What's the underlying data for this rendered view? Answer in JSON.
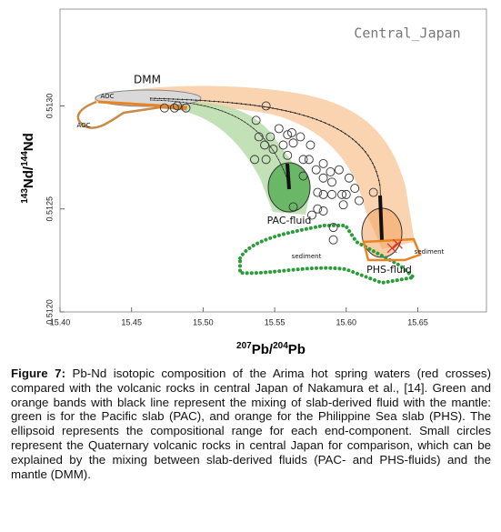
{
  "chart_data": {
    "type": "scatter",
    "xlabel_parts": [
      "207",
      "Pb/",
      "204",
      "Pb"
    ],
    "ylabel_parts": [
      "143",
      "Nd/",
      "144",
      "Nd"
    ],
    "annotations": [
      "Central_Japan",
      "DMM",
      "AOC",
      "AOC",
      "PAC-fluid",
      "PHS-fluid",
      "sediment",
      "sediment"
    ],
    "xlim": [
      15.4,
      15.698
    ],
    "ylim": [
      0.512,
      0.51347
    ],
    "xticks": [
      {
        "value": 15.4,
        "label": "15.40"
      },
      15.45,
      {
        "value": 15.5,
        "label": "15.50"
      },
      15.55,
      {
        "value": 15.6,
        "label": "15.60"
      },
      15.65
    ],
    "yticks": [
      {
        "value": 0.512,
        "label": "0.5120"
      },
      0.5125,
      {
        "value": 0.513,
        "label": "0.5130"
      }
    ],
    "series": [
      {
        "marker": "circle",
        "color": "#333333",
        "x": [
          15.544,
          15.537,
          15.553,
          15.539,
          15.547,
          15.559,
          15.562,
          15.543,
          15.549,
          15.556,
          15.563,
          15.568,
          15.575,
          15.559,
          15.57,
          15.574,
          15.584,
          15.536,
          15.544,
          15.579,
          15.57,
          15.589,
          15.595,
          15.584,
          15.59,
          15.602,
          15.58,
          15.584,
          15.59,
          15.597,
          15.6,
          15.606,
          15.609,
          15.619,
          15.58,
          15.584,
          15.576,
          15.598,
          15.591,
          15.591,
          15.563,
          15.48,
          15.482,
          15.488,
          15.473
        ],
        "values": [
          0.513,
          0.51293,
          0.51289,
          0.51285,
          0.51285,
          0.51286,
          0.51287,
          0.51281,
          0.51279,
          0.51281,
          0.51282,
          0.51285,
          0.51281,
          0.51276,
          0.51274,
          0.51274,
          0.51272,
          0.51274,
          0.51274,
          0.51269,
          0.51266,
          0.51268,
          0.51269,
          0.51265,
          0.51263,
          0.51265,
          0.51258,
          0.51257,
          0.51257,
          0.51257,
          0.51257,
          0.5126,
          0.51254,
          0.51258,
          0.5125,
          0.51249,
          0.51247,
          0.51252,
          0.51241,
          0.51235,
          0.51251,
          0.51299,
          0.513,
          0.51299,
          0.51299
        ]
      },
      {
        "marker": "cross",
        "color": "#d9382e",
        "x": [
          15.632,
          15.636
        ],
        "values": [
          0.51231,
          0.51233
        ]
      }
    ]
  },
  "caption": {
    "label": "Figure 7:",
    "text": "Pb-Nd isotopic composition of the Arima hot spring waters (red crosses) compared with the volcanic rocks in central Japan of Nakamura et al., [14]. Green and orange bands with black line represent the mixing of slab-derived fluid with the mantle: green is for the Pacific slab (PAC), and orange for the Philippine Sea slab (PHS). The ellipsoid represents the compositional range for each end-component. Small circles represent the Quaternary volcanic rocks in central Japan for comparison, which can be explained by the mixing between slab-derived fluids (PAC- and PHS-fluids) and the mantle (DMM)."
  }
}
